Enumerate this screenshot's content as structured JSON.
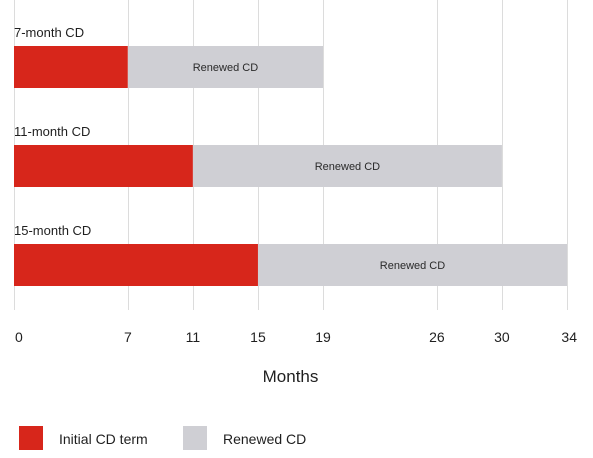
{
  "chart_data": {
    "type": "bar",
    "orientation": "horizontal-stacked",
    "xlabel": "Months",
    "xlim": [
      0,
      34
    ],
    "x_ticks": [
      {
        "value": 0,
        "label": "0"
      },
      {
        "value": 7,
        "label": "7"
      },
      {
        "value": 11,
        "label": "11"
      },
      {
        "value": 15,
        "label": "15"
      },
      {
        "value": 19,
        "label": "19"
      },
      {
        "value": 26,
        "label": "26"
      },
      {
        "value": 30,
        "label": "30"
      },
      {
        "value": 34,
        "label": "34"
      }
    ],
    "grid": true,
    "legend_position": "bottom-left",
    "categories": [
      "7-month CD",
      "11-month CD",
      "15-month CD"
    ],
    "series": [
      {
        "name": "Initial CD term",
        "color": "#d7261b",
        "segments": [
          [
            0,
            7
          ],
          [
            0,
            11
          ],
          [
            0,
            15
          ]
        ],
        "labels": [
          "",
          "",
          ""
        ]
      },
      {
        "name": "Renewed CD",
        "color": "#cfcfd4",
        "segments": [
          [
            7,
            19
          ],
          [
            11,
            30
          ],
          [
            15,
            34
          ]
        ],
        "labels": [
          "Renewed CD",
          "Renewed CD",
          "Renewed CD"
        ]
      }
    ]
  }
}
